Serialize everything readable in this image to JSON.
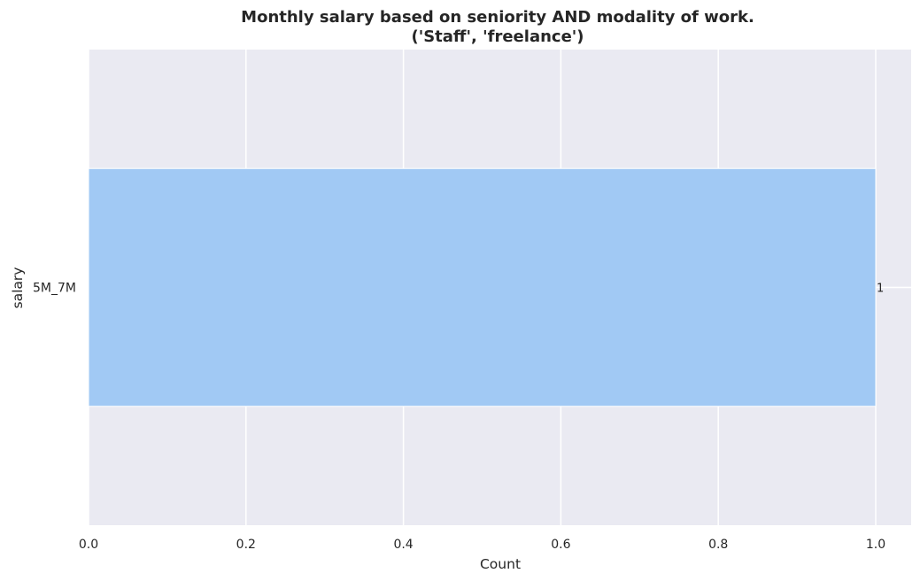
{
  "chart_data": {
    "type": "bar",
    "orientation": "horizontal",
    "title": "Monthly salary based on seniority AND modality of work.",
    "subtitle": "('Staff', 'freelance')",
    "xlabel": "Count",
    "ylabel": "salary",
    "categories": [
      "5M_7M"
    ],
    "values": [
      1
    ],
    "data_labels": [
      "1"
    ],
    "xlim": [
      0,
      1.045
    ],
    "x_ticks": [
      0.0,
      0.2,
      0.4,
      0.6,
      0.8,
      1.0
    ],
    "x_tick_labels": [
      "0.0",
      "0.2",
      "0.4",
      "0.6",
      "0.8",
      "1.0"
    ],
    "grid": true,
    "legend": "none",
    "colors": {
      "background": "#eaeaf2",
      "grid": "#ffffff",
      "bar": "#a1c9f4",
      "text": "#262626"
    }
  }
}
